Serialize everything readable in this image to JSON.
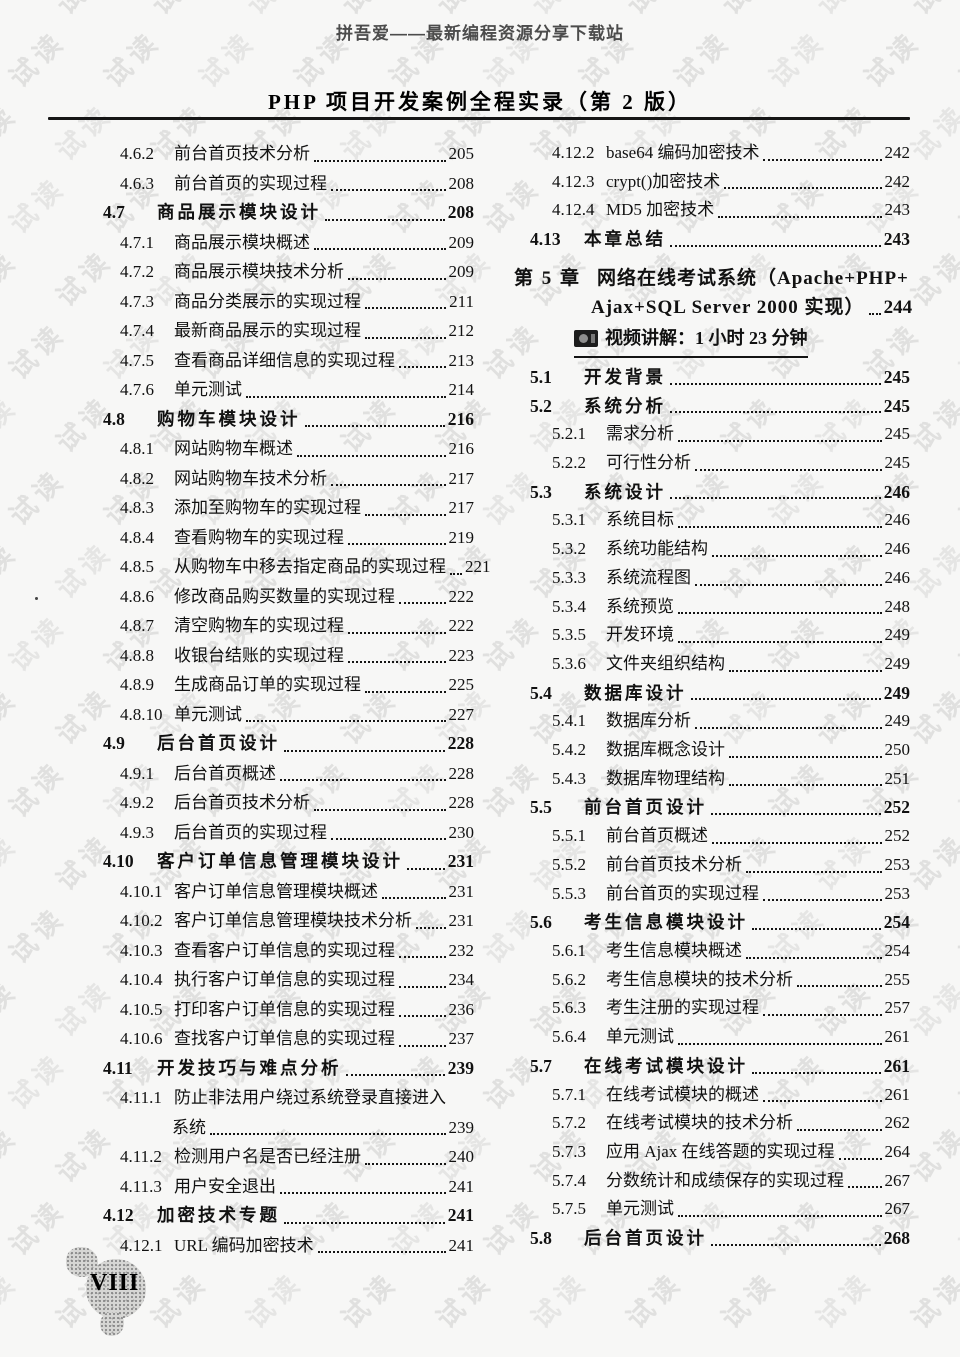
{
  "header": {
    "site_line": "拼吾爱——最新编程资源分享下载站",
    "book_title": "PHP 项目开发案例全程实录（第 2 版）"
  },
  "watermark": {
    "text": "试读",
    "color": "#e0e0df"
  },
  "footer": {
    "page_number": "VIII"
  },
  "toc_left": [
    {
      "level": "sub",
      "num": "4.6.2",
      "title": "前台首页技术分析",
      "page": "205"
    },
    {
      "level": "sub",
      "num": "4.6.3",
      "title": "前台首页的实现过程",
      "page": "208"
    },
    {
      "level": "section",
      "num": "4.7",
      "title": "商品展示模块设计",
      "page": "208"
    },
    {
      "level": "sub",
      "num": "4.7.1",
      "title": "商品展示模块概述",
      "page": "209"
    },
    {
      "level": "sub",
      "num": "4.7.2",
      "title": "商品展示模块技术分析",
      "page": "209"
    },
    {
      "level": "sub",
      "num": "4.7.3",
      "title": "商品分类展示的实现过程",
      "page": "211"
    },
    {
      "level": "sub",
      "num": "4.7.4",
      "title": "最新商品展示的实现过程",
      "page": "212"
    },
    {
      "level": "sub",
      "num": "4.7.5",
      "title": "查看商品详细信息的实现过程",
      "page": "213"
    },
    {
      "level": "sub",
      "num": "4.7.6",
      "title": "单元测试",
      "page": "214"
    },
    {
      "level": "section",
      "num": "4.8",
      "title": "购物车模块设计",
      "page": "216"
    },
    {
      "level": "sub",
      "num": "4.8.1",
      "title": "网站购物车概述",
      "page": "216"
    },
    {
      "level": "sub",
      "num": "4.8.2",
      "title": "网站购物车技术分析",
      "page": "217"
    },
    {
      "level": "sub",
      "num": "4.8.3",
      "title": "添加至购物车的实现过程",
      "page": "217"
    },
    {
      "level": "sub",
      "num": "4.8.4",
      "title": "查看购物车的实现过程",
      "page": "219"
    },
    {
      "level": "sub",
      "num": "4.8.5",
      "title": "从购物车中移去指定商品的实现过程",
      "page": "221"
    },
    {
      "level": "sub",
      "num": "4.8.6",
      "title": "修改商品购买数量的实现过程",
      "page": "222"
    },
    {
      "level": "sub",
      "num": "4.8.7",
      "title": "清空购物车的实现过程",
      "page": "222"
    },
    {
      "level": "sub",
      "num": "4.8.8",
      "title": "收银台结账的实现过程",
      "page": "223"
    },
    {
      "level": "sub",
      "num": "4.8.9",
      "title": "生成商品订单的实现过程",
      "page": "225"
    },
    {
      "level": "sub",
      "num": "4.8.10",
      "title": "单元测试",
      "page": "227"
    },
    {
      "level": "section",
      "num": "4.9",
      "title": "后台首页设计",
      "page": "228"
    },
    {
      "level": "sub",
      "num": "4.9.1",
      "title": "后台首页概述",
      "page": "228"
    },
    {
      "level": "sub",
      "num": "4.9.2",
      "title": "后台首页技术分析",
      "page": "228"
    },
    {
      "level": "sub",
      "num": "4.9.3",
      "title": "后台首页的实现过程",
      "page": "230"
    },
    {
      "level": "section",
      "num": "4.10",
      "title": "客户订单信息管理模块设计",
      "page": "231"
    },
    {
      "level": "sub",
      "num": "4.10.1",
      "title": "客户订单信息管理模块概述",
      "page": "231"
    },
    {
      "level": "sub",
      "num": "4.10.2",
      "title": "客户订单信息管理模块技术分析",
      "page": "231"
    },
    {
      "level": "sub",
      "num": "4.10.3",
      "title": "查看客户订单信息的实现过程",
      "page": "232"
    },
    {
      "level": "sub",
      "num": "4.10.4",
      "title": "执行客户订单信息的实现过程",
      "page": "234"
    },
    {
      "level": "sub",
      "num": "4.10.5",
      "title": "打印客户订单信息的实现过程",
      "page": "236"
    },
    {
      "level": "sub",
      "num": "4.10.6",
      "title": "查找客户订单信息的实现过程",
      "page": "237"
    },
    {
      "level": "section",
      "num": "4.11",
      "title": "开发技巧与难点分析",
      "page": "239"
    },
    {
      "level": "sub",
      "num": "4.11.1",
      "title": "防止非法用户绕过系统登录直接进入",
      "page": null
    },
    {
      "level": "sub-cont",
      "num": null,
      "title": "系统",
      "page": "239"
    },
    {
      "level": "sub",
      "num": "4.11.2",
      "title": "检测用户名是否已经注册",
      "page": "240"
    },
    {
      "level": "sub",
      "num": "4.11.3",
      "title": "用户安全退出",
      "page": "241"
    },
    {
      "level": "section",
      "num": "4.12",
      "title": "加密技术专题",
      "page": "241"
    },
    {
      "level": "sub",
      "num": "4.12.1",
      "title": "URL 编码加密技术",
      "page": "241"
    }
  ],
  "toc_right": [
    {
      "level": "sub",
      "num": "4.12.2",
      "title": "base64 编码加密技术",
      "page": "242"
    },
    {
      "level": "sub",
      "num": "4.12.3",
      "title": "crypt()加密技术",
      "page": "242"
    },
    {
      "level": "sub",
      "num": "4.12.4",
      "title": "MD5 加密技术",
      "page": "243"
    },
    {
      "level": "section",
      "num": "4.13",
      "title": "本章总结",
      "page": "243"
    },
    {
      "level": "chapter",
      "num": "第 5 章",
      "title": "网络在线考试系统（Apache+PHP+",
      "page": null
    },
    {
      "level": "chapter-cont",
      "num": null,
      "title": "Ajax+SQL Server 2000 实现）",
      "page": "244"
    },
    {
      "level": "video",
      "num": null,
      "title": "视频讲解：1 小时 23 分钟",
      "page": null
    },
    {
      "level": "section",
      "num": "5.1",
      "title": "开发背景",
      "page": "245"
    },
    {
      "level": "section",
      "num": "5.2",
      "title": "系统分析",
      "page": "245"
    },
    {
      "level": "sub",
      "num": "5.2.1",
      "title": "需求分析",
      "page": "245"
    },
    {
      "level": "sub",
      "num": "5.2.2",
      "title": "可行性分析",
      "page": "245"
    },
    {
      "level": "section",
      "num": "5.3",
      "title": "系统设计",
      "page": "246"
    },
    {
      "level": "sub",
      "num": "5.3.1",
      "title": "系统目标",
      "page": "246"
    },
    {
      "level": "sub",
      "num": "5.3.2",
      "title": "系统功能结构",
      "page": "246"
    },
    {
      "level": "sub",
      "num": "5.3.3",
      "title": "系统流程图",
      "page": "246"
    },
    {
      "level": "sub",
      "num": "5.3.4",
      "title": "系统预览",
      "page": "248"
    },
    {
      "level": "sub",
      "num": "5.3.5",
      "title": "开发环境",
      "page": "249"
    },
    {
      "level": "sub",
      "num": "5.3.6",
      "title": "文件夹组织结构",
      "page": "249"
    },
    {
      "level": "section",
      "num": "5.4",
      "title": "数据库设计",
      "page": "249"
    },
    {
      "level": "sub",
      "num": "5.4.1",
      "title": "数据库分析",
      "page": "249"
    },
    {
      "level": "sub",
      "num": "5.4.2",
      "title": "数据库概念设计",
      "page": "250"
    },
    {
      "level": "sub",
      "num": "5.4.3",
      "title": "数据库物理结构",
      "page": "251"
    },
    {
      "level": "section",
      "num": "5.5",
      "title": "前台首页设计",
      "page": "252"
    },
    {
      "level": "sub",
      "num": "5.5.1",
      "title": "前台首页概述",
      "page": "252"
    },
    {
      "level": "sub",
      "num": "5.5.2",
      "title": "前台首页技术分析",
      "page": "253"
    },
    {
      "level": "sub",
      "num": "5.5.3",
      "title": "前台首页的实现过程",
      "page": "253"
    },
    {
      "level": "section",
      "num": "5.6",
      "title": "考生信息模块设计",
      "page": "254"
    },
    {
      "level": "sub",
      "num": "5.6.1",
      "title": "考生信息模块概述",
      "page": "254"
    },
    {
      "level": "sub",
      "num": "5.6.2",
      "title": "考生信息模块的技术分析",
      "page": "255"
    },
    {
      "level": "sub",
      "num": "5.6.3",
      "title": "考生注册的实现过程",
      "page": "257"
    },
    {
      "level": "sub",
      "num": "5.6.4",
      "title": "单元测试",
      "page": "261"
    },
    {
      "level": "section",
      "num": "5.7",
      "title": "在线考试模块设计",
      "page": "261"
    },
    {
      "level": "sub",
      "num": "5.7.1",
      "title": "在线考试模块的概述",
      "page": "261"
    },
    {
      "level": "sub",
      "num": "5.7.2",
      "title": "在线考试模块的技术分析",
      "page": "262"
    },
    {
      "level": "sub",
      "num": "5.7.3",
      "title": "应用 Ajax 在线答题的实现过程",
      "page": "264"
    },
    {
      "level": "sub",
      "num": "5.7.4",
      "title": "分数统计和成绩保存的实现过程",
      "page": "267"
    },
    {
      "level": "sub",
      "num": "5.7.5",
      "title": "单元测试",
      "page": "267"
    },
    {
      "level": "section",
      "num": "5.8",
      "title": "后台首页设计",
      "page": "268"
    }
  ]
}
